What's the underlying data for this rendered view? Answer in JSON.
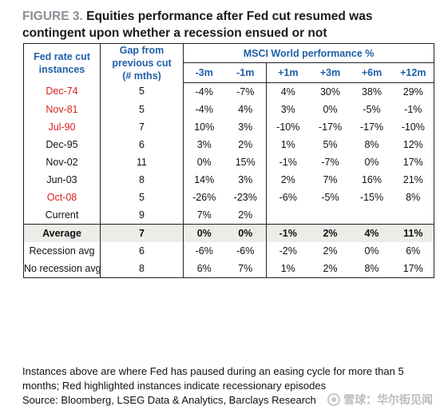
{
  "title": {
    "label": "FIGURE 3.",
    "text": "Equities performance after Fed cut resumed was contingent upon whether a recession ensued or not"
  },
  "table": {
    "col1_header": "Fed rate cut instances",
    "col2_header": "Gap from previous cut (# mths)",
    "group_header": "MSCI World performance %",
    "sub_headers": [
      "-3m",
      "-1m",
      "+1m",
      "+3m",
      "+6m",
      "+12m"
    ],
    "rows": [
      {
        "label": "Dec-74",
        "recession": true,
        "gap": "5",
        "m3": "-4%",
        "m1": "-7%",
        "p1": "4%",
        "p3": "30%",
        "p6": "38%",
        "p12": "29%"
      },
      {
        "label": "Nov-81",
        "recession": true,
        "gap": "5",
        "m3": "-4%",
        "m1": "4%",
        "p1": "3%",
        "p3": "0%",
        "p6": "-5%",
        "p12": "-1%"
      },
      {
        "label": "Jul-90",
        "recession": true,
        "gap": "7",
        "m3": "10%",
        "m1": "3%",
        "p1": "-10%",
        "p3": "-17%",
        "p6": "-17%",
        "p12": "-10%"
      },
      {
        "label": "Dec-95",
        "recession": false,
        "gap": "6",
        "m3": "3%",
        "m1": "2%",
        "p1": "1%",
        "p3": "5%",
        "p6": "8%",
        "p12": "12%"
      },
      {
        "label": "Nov-02",
        "recession": false,
        "gap": "11",
        "m3": "0%",
        "m1": "15%",
        "p1": "-1%",
        "p3": "-7%",
        "p6": "0%",
        "p12": "17%"
      },
      {
        "label": "Jun-03",
        "recession": false,
        "gap": "8",
        "m3": "14%",
        "m1": "3%",
        "p1": "2%",
        "p3": "7%",
        "p6": "16%",
        "p12": "21%"
      },
      {
        "label": "Oct-08",
        "recession": true,
        "gap": "5",
        "m3": "-26%",
        "m1": "-23%",
        "p1": "-6%",
        "p3": "-5%",
        "p6": "-15%",
        "p12": "8%"
      },
      {
        "label": "Current",
        "recession": false,
        "gap": "9",
        "m3": "7%",
        "m1": "2%",
        "p1": "",
        "p3": "",
        "p6": "",
        "p12": ""
      }
    ],
    "summary": [
      {
        "label": "Average",
        "gap": "7",
        "m3": "0%",
        "m1": "0%",
        "p1": "-1%",
        "p3": "2%",
        "p6": "4%",
        "p12": "11%"
      },
      {
        "label": "Recession avg",
        "gap": "6",
        "m3": "-6%",
        "m1": "-6%",
        "p1": "-2%",
        "p3": "2%",
        "p6": "0%",
        "p12": "6%"
      },
      {
        "label": "No recession avg",
        "gap": "8",
        "m3": "6%",
        "m1": "7%",
        "p1": "1%",
        "p3": "2%",
        "p6": "8%",
        "p12": "17%"
      }
    ]
  },
  "footnote": {
    "line1": "Instances above are where Fed has paused during an easing cycle for more than 5 months; Red highlighted instances indicate recessionary episodes",
    "line2": "Source: Bloomberg, LSEG Data & Analytics, Barclays Research"
  },
  "watermark": {
    "text": "雪球：华尔街见闻",
    "icon": "snowball-logo-icon"
  },
  "colors": {
    "header_blue": "#1f5fa8",
    "recession_red": "#d9221c",
    "label_grey": "#8a8f96",
    "avg_row_bg": "#eeece9"
  }
}
